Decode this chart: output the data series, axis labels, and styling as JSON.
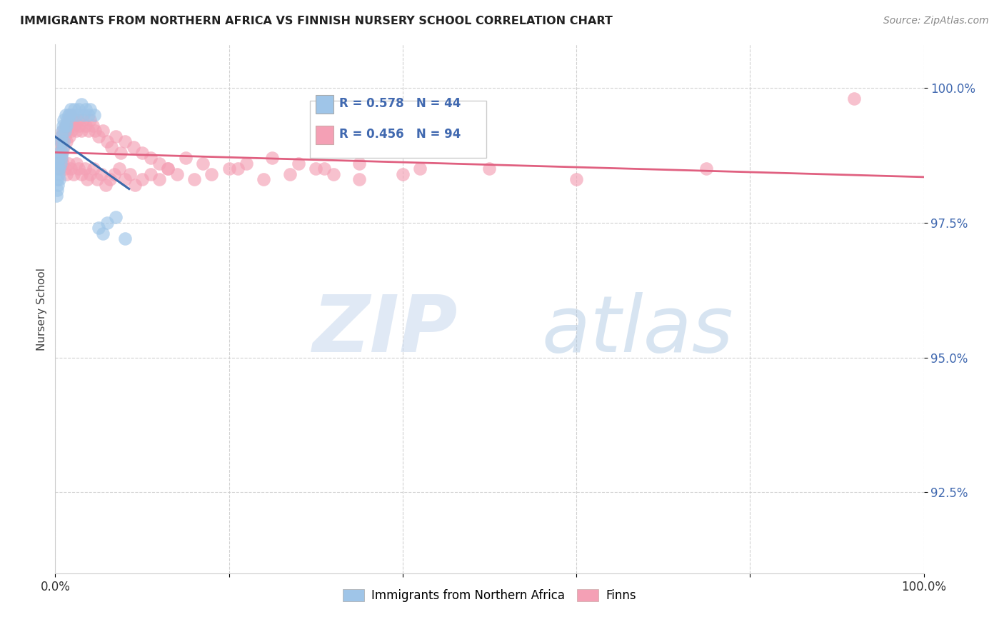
{
  "title": "IMMIGRANTS FROM NORTHERN AFRICA VS FINNISH NURSERY SCHOOL CORRELATION CHART",
  "source": "Source: ZipAtlas.com",
  "ylabel": "Nursery School",
  "legend_label_blue": "Immigrants from Northern Africa",
  "legend_label_pink": "Finns",
  "R_blue": 0.578,
  "N_blue": 44,
  "R_pink": 0.456,
  "N_pink": 94,
  "blue_color": "#9fc5e8",
  "pink_color": "#f4a0b5",
  "blue_line_color": "#3a6aab",
  "pink_line_color": "#e06080",
  "ylim": [
    91.0,
    100.8
  ],
  "xlim": [
    0.0,
    1.0
  ],
  "ytick_vals": [
    92.5,
    95.0,
    97.5,
    100.0
  ],
  "ytick_labels": [
    "92.5%",
    "95.0%",
    "97.5%",
    "100.0%"
  ],
  "blue_x": [
    0.001,
    0.002,
    0.002,
    0.003,
    0.003,
    0.003,
    0.004,
    0.004,
    0.005,
    0.005,
    0.005,
    0.006,
    0.006,
    0.007,
    0.007,
    0.008,
    0.008,
    0.009,
    0.009,
    0.01,
    0.01,
    0.011,
    0.012,
    0.012,
    0.013,
    0.014,
    0.015,
    0.016,
    0.018,
    0.02,
    0.022,
    0.025,
    0.027,
    0.03,
    0.033,
    0.035,
    0.038,
    0.04,
    0.045,
    0.05,
    0.055,
    0.06,
    0.07,
    0.08
  ],
  "blue_y": [
    98.0,
    98.1,
    98.3,
    98.2,
    98.5,
    98.6,
    98.4,
    98.7,
    98.3,
    98.5,
    98.8,
    98.6,
    99.0,
    98.7,
    99.1,
    98.8,
    99.2,
    98.9,
    99.3,
    99.0,
    99.4,
    99.2,
    99.3,
    99.5,
    99.3,
    99.4,
    99.5,
    99.5,
    99.6,
    99.5,
    99.6,
    99.5,
    99.6,
    99.7,
    99.5,
    99.6,
    99.5,
    99.6,
    99.5,
    97.4,
    97.3,
    97.5,
    97.6,
    97.2
  ],
  "pink_x": [
    0.002,
    0.003,
    0.004,
    0.005,
    0.006,
    0.007,
    0.008,
    0.009,
    0.01,
    0.011,
    0.012,
    0.013,
    0.014,
    0.015,
    0.016,
    0.017,
    0.018,
    0.019,
    0.02,
    0.022,
    0.024,
    0.026,
    0.028,
    0.03,
    0.032,
    0.035,
    0.038,
    0.04,
    0.043,
    0.046,
    0.05,
    0.055,
    0.06,
    0.065,
    0.07,
    0.075,
    0.08,
    0.09,
    0.1,
    0.11,
    0.12,
    0.13,
    0.15,
    0.17,
    0.2,
    0.22,
    0.25,
    0.28,
    0.3,
    0.32,
    0.003,
    0.005,
    0.007,
    0.009,
    0.011,
    0.013,
    0.015,
    0.018,
    0.021,
    0.024,
    0.027,
    0.03,
    0.034,
    0.037,
    0.04,
    0.044,
    0.048,
    0.053,
    0.058,
    0.063,
    0.068,
    0.074,
    0.08,
    0.086,
    0.092,
    0.1,
    0.11,
    0.12,
    0.13,
    0.14,
    0.16,
    0.18,
    0.21,
    0.24,
    0.27,
    0.31,
    0.35,
    0.4,
    0.5,
    0.6,
    0.35,
    0.42,
    0.75,
    0.92
  ],
  "pink_y": [
    98.8,
    98.9,
    99.0,
    98.7,
    99.1,
    98.8,
    99.0,
    99.2,
    98.9,
    99.1,
    99.3,
    99.0,
    99.2,
    99.4,
    99.1,
    99.3,
    99.5,
    99.2,
    99.4,
    99.3,
    99.2,
    99.4,
    99.3,
    99.2,
    99.4,
    99.3,
    99.2,
    99.4,
    99.3,
    99.2,
    99.1,
    99.2,
    99.0,
    98.9,
    99.1,
    98.8,
    99.0,
    98.9,
    98.8,
    98.7,
    98.6,
    98.5,
    98.7,
    98.6,
    98.5,
    98.6,
    98.7,
    98.6,
    98.5,
    98.4,
    98.6,
    98.5,
    98.7,
    98.6,
    98.5,
    98.4,
    98.6,
    98.5,
    98.4,
    98.6,
    98.5,
    98.4,
    98.5,
    98.3,
    98.4,
    98.5,
    98.3,
    98.4,
    98.2,
    98.3,
    98.4,
    98.5,
    98.3,
    98.4,
    98.2,
    98.3,
    98.4,
    98.3,
    98.5,
    98.4,
    98.3,
    98.4,
    98.5,
    98.3,
    98.4,
    98.5,
    98.3,
    98.4,
    98.5,
    98.3,
    98.6,
    98.5,
    98.5,
    99.8
  ]
}
